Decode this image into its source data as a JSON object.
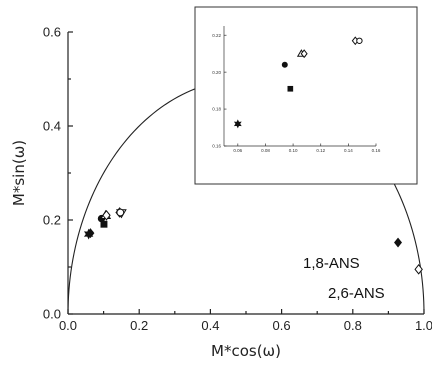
{
  "chart_data": [
    {
      "type": "scatter",
      "title": "",
      "xlabel": "M*cos(ω)",
      "ylabel": "M*sin(ω)",
      "xlim": [
        0,
        1
      ],
      "ylim": [
        0,
        0.6
      ],
      "x_ticks": [
        "0.0",
        "0.2",
        "0.4",
        "0.6",
        "0.8",
        "1.0"
      ],
      "y_ticks": [
        "0.0",
        "0.2",
        "0.4",
        "0.6"
      ],
      "grid": false,
      "reference_curve": "universal semicircle",
      "series": [
        {
          "marker": "filled-diamond",
          "color": "#111111",
          "points": [
            {
              "x": 0.063,
              "y": 0.172
            },
            {
              "x": 0.927,
              "y": 0.152
            }
          ]
        },
        {
          "marker": "filled-star",
          "color": "#111111",
          "points": [
            {
              "x": 0.058,
              "y": 0.17
            }
          ]
        },
        {
          "marker": "filled-circle",
          "color": "#111111",
          "points": [
            {
              "x": 0.094,
              "y": 0.203
            }
          ]
        },
        {
          "marker": "filled-square",
          "color": "#111111",
          "points": [
            {
              "x": 0.101,
              "y": 0.191
            }
          ]
        },
        {
          "marker": "open-triangle-up",
          "color": "#111111",
          "points": [
            {
              "x": 0.106,
              "y": 0.21
            }
          ]
        },
        {
          "marker": "open-triangle-down",
          "color": "#111111",
          "points": [
            {
              "x": 0.15,
              "y": 0.215
            }
          ]
        },
        {
          "marker": "open-diamond",
          "color": "#111111",
          "points": [
            {
              "x": 0.108,
              "y": 0.21
            },
            {
              "x": 0.145,
              "y": 0.216
            },
            {
              "x": 0.985,
              "y": 0.095
            }
          ]
        },
        {
          "marker": "open-circle",
          "color": "#111111",
          "points": [
            {
              "x": 0.147,
              "y": 0.216
            }
          ]
        }
      ],
      "annotations": [
        "1,8-ANS",
        "2,6-ANS"
      ]
    },
    {
      "type": "scatter",
      "title": "",
      "xlabel": "",
      "ylabel": "",
      "xlim": [
        0.05,
        0.16
      ],
      "ylim": [
        0.16,
        0.225
      ],
      "x_ticks": [
        "0.06",
        "0.08",
        "0.10",
        "0.12",
        "0.14",
        "0.16"
      ],
      "y_ticks": [
        "0.16",
        "0.18",
        "0.20",
        "0.22"
      ],
      "grid": false,
      "series": [
        {
          "marker": "filled-star",
          "color": "#111111",
          "points": [
            {
              "x": 0.06,
              "y": 0.172
            }
          ]
        },
        {
          "marker": "filled-circle",
          "color": "#111111",
          "points": [
            {
              "x": 0.094,
              "y": 0.204
            }
          ]
        },
        {
          "marker": "filled-square",
          "color": "#111111",
          "points": [
            {
              "x": 0.098,
              "y": 0.191
            }
          ]
        },
        {
          "marker": "open-triangle-up",
          "color": "#111111",
          "points": [
            {
              "x": 0.106,
              "y": 0.21
            }
          ]
        },
        {
          "marker": "open-diamond",
          "color": "#111111",
          "points": [
            {
              "x": 0.108,
              "y": 0.21
            },
            {
              "x": 0.145,
              "y": 0.217
            }
          ]
        },
        {
          "marker": "open-circle",
          "color": "#111111",
          "points": [
            {
              "x": 0.148,
              "y": 0.217
            }
          ]
        }
      ]
    }
  ]
}
